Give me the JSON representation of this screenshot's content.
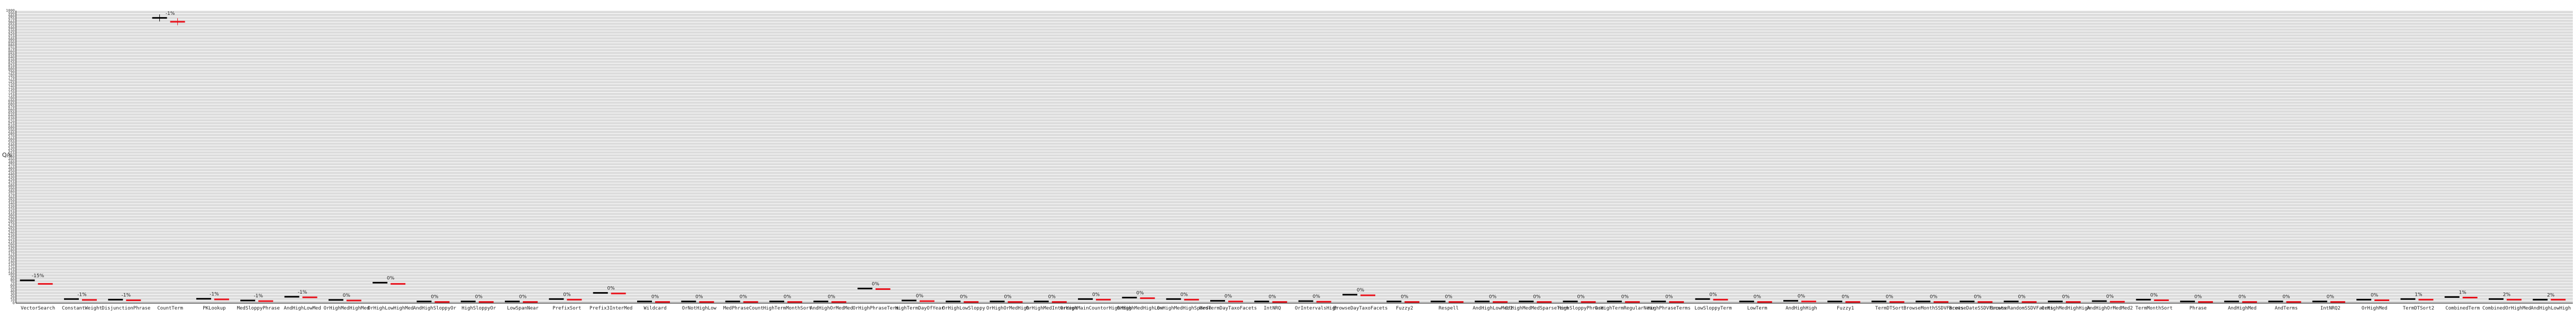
{
  "chart_data": {
    "type": "bar",
    "ylabel": "Q/s",
    "grid": true,
    "colors": {
      "background": "#dcdcdc",
      "grid": "#ffffff",
      "series_a": "#000000",
      "series_b": "#e8101a"
    },
    "categories": [
      "VectorSearch",
      "ConstantWeight",
      "DisjunctionPhrase",
      "CountTerm",
      "PKLookup",
      "MedSloppyPhrase",
      "AndHighLowMed",
      "OrHighMedHighMed",
      "OrHighLowHighMed",
      "AndHighSloppyOr",
      "HighSloppyOr",
      "LowSpanNear",
      "PrefixSort",
      "Prefix3InterMed",
      "Wildcard",
      "OrNotHighLow",
      "MedPhraseCount",
      "HighTermMonthSort",
      "AndHighOrMedMed",
      "OrHighPhraseTerm",
      "HighTermDayOfYear",
      "OrHighLowSloppy",
      "OrHighOrMedHigh",
      "OrHighMedIntercept",
      "OrHighMainCountorHighHigh",
      "OrHighMedHighLow",
      "OrHighMedHighSparse",
      "MedTermDayTaxoFacets",
      "IntNRQ",
      "OrIntervalsHigh",
      "BrowseDayTaxoFacets",
      "Fuzzy2",
      "Respell",
      "AndHighLowMed2",
      "OrHighMedMedSparseTerm",
      "HighSloppyPhrase",
      "OrHighTermRegularNear",
      "HighPhraseTerms",
      "LowSloppyTerm",
      "LowTerm",
      "AndHighHigh",
      "Fuzzy1",
      "TermDTSort",
      "BrowseMonthSSDVFacets",
      "BrowseDateSSDVFacets",
      "BrowseRandomSSDVFacets",
      "OrHighMedHighHigh",
      "AndHighOrMedMed2",
      "TermMonthSort",
      "Phrase",
      "AndHighMed",
      "AndTerms",
      "IntNRQ2",
      "OrHighMed",
      "TermDTSort2",
      "CombinedTerm",
      "CombinedOrHighMed",
      "AndHighLowHigh"
    ],
    "labels": [
      "-15%",
      "-1%",
      "-1%",
      "-1%",
      "-1%",
      "-1%",
      "-1%",
      "0%",
      "0%",
      "0%",
      "0%",
      "0%",
      "0%",
      "0%",
      "0%",
      "0%",
      "0%",
      "0%",
      "0%",
      "0%",
      "0%",
      "0%",
      "0%",
      "0%",
      "0%",
      "0%",
      "0%",
      "0%",
      "0%",
      "0%",
      "0%",
      "0%",
      "0%",
      "0%",
      "0%",
      "0%",
      "0%",
      "0%",
      "0%",
      "0%",
      "0%",
      "0%",
      "0%",
      "0%",
      "0%",
      "0%",
      "0%",
      "0%",
      "0%",
      "0%",
      "0%",
      "0%",
      "0%",
      "0%",
      "1%",
      "1%",
      "2%",
      "2%"
    ],
    "series": [
      {
        "values": [
          78,
          14,
          12,
          975,
          15,
          9,
          22,
          11,
          70,
          6,
          6,
          6,
          14,
          35,
          6,
          6,
          6,
          6,
          6,
          50,
          9,
          6,
          6,
          6,
          14,
          19,
          14,
          8,
          6,
          7,
          29,
          6,
          6,
          6,
          6,
          6,
          6,
          6,
          14,
          6,
          8,
          6,
          6,
          6,
          6,
          6,
          6,
          7,
          12,
          6,
          6,
          6,
          6,
          12,
          14,
          21,
          14,
          12
        ]
      },
      {
        "values": [
          66,
          11,
          10,
          962,
          13,
          7,
          20,
          9,
          66,
          4,
          4,
          4,
          12,
          33,
          4,
          4,
          4,
          4,
          4,
          48,
          7,
          4,
          4,
          4,
          12,
          17,
          12,
          6,
          4,
          5,
          27,
          4,
          4,
          4,
          4,
          4,
          4,
          4,
          12,
          4,
          6,
          4,
          4,
          4,
          4,
          4,
          4,
          5,
          10,
          4,
          4,
          4,
          4,
          10,
          12,
          19,
          12,
          12
        ]
      }
    ],
    "ylim": [
      0,
      1000
    ]
  }
}
